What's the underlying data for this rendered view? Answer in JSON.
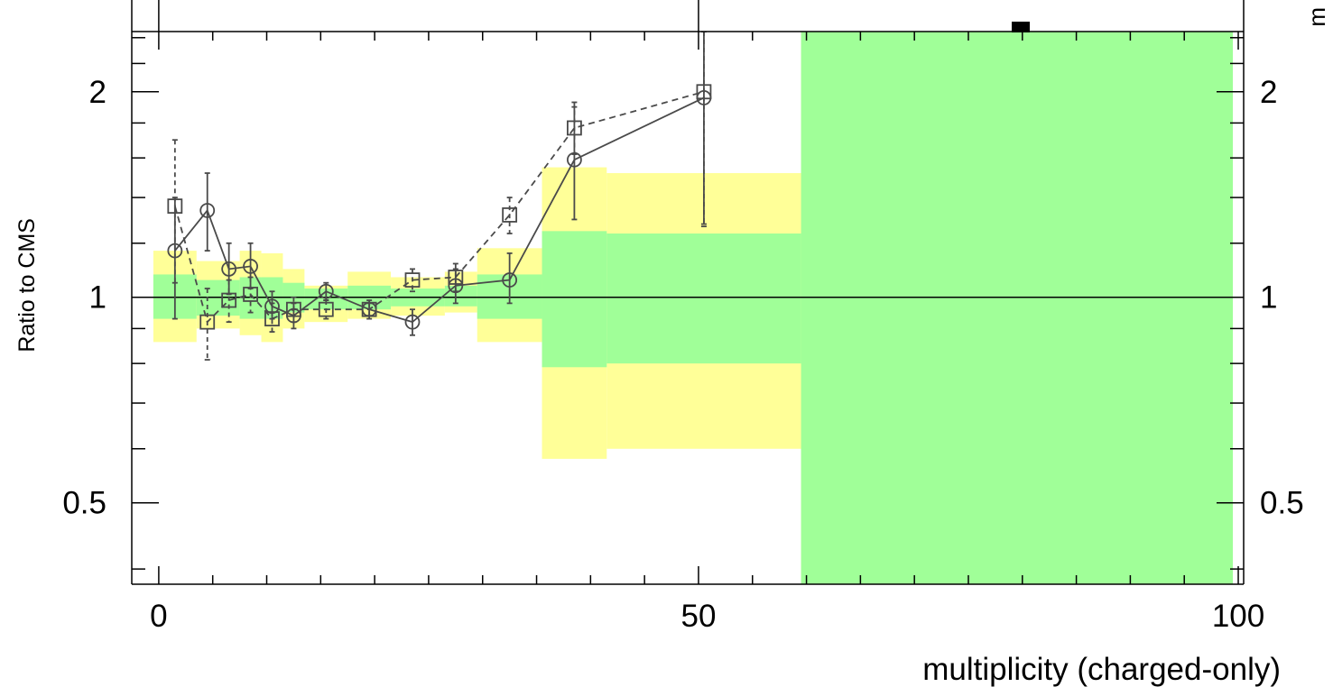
{
  "chart_data": {
    "type": "line",
    "xlabel": "multiplicity (charged-only)",
    "ylabel": "Ratio to CMS",
    "right_edge_label": "m",
    "xlim": [
      -2.5,
      100.5
    ],
    "ylim": [
      0.38,
      2.45
    ],
    "y_scale": "log",
    "x_ticks": [
      0,
      50,
      100
    ],
    "x_tick_labels": [
      "0",
      "50",
      "100"
    ],
    "y_ticks": [
      0.5,
      1,
      2
    ],
    "y_tick_labels": [
      "0.5",
      "1",
      "2"
    ],
    "reference_line": 1,
    "colors": {
      "stat_band": "#a0ff98",
      "syst_band": "#ffff98",
      "series": "#4a4a4a",
      "axis": "#000000"
    },
    "bands": {
      "outer": [
        {
          "x_lo": -0.5,
          "x_hi": 3.5,
          "lo": 0.86,
          "hi": 1.17
        },
        {
          "x_lo": 3.5,
          "x_hi": 7.5,
          "lo": 0.9,
          "hi": 1.13
        },
        {
          "x_lo": 7.5,
          "x_hi": 9.5,
          "lo": 0.88,
          "hi": 1.17
        },
        {
          "x_lo": 9.5,
          "x_hi": 11.5,
          "lo": 0.86,
          "hi": 1.16
        },
        {
          "x_lo": 11.5,
          "x_hi": 13.5,
          "lo": 0.9,
          "hi": 1.1
        },
        {
          "x_lo": 13.5,
          "x_hi": 17.5,
          "lo": 0.92,
          "hi": 1.04
        },
        {
          "x_lo": 17.5,
          "x_hi": 21.5,
          "lo": 0.93,
          "hi": 1.09
        },
        {
          "x_lo": 21.5,
          "x_hi": 26.5,
          "lo": 0.94,
          "hi": 1.07
        },
        {
          "x_lo": 26.5,
          "x_hi": 29.5,
          "lo": 0.95,
          "hi": 1.09
        },
        {
          "x_lo": 29.5,
          "x_hi": 35.5,
          "lo": 0.86,
          "hi": 1.18
        },
        {
          "x_lo": 35.5,
          "x_hi": 41.5,
          "lo": 0.58,
          "hi": 1.55
        },
        {
          "x_lo": 41.5,
          "x_hi": 59.5,
          "lo": 0.6,
          "hi": 1.52
        },
        {
          "x_lo": 59.5,
          "x_hi": 99.5,
          "lo": 0.38,
          "hi": 2.45
        }
      ],
      "inner": [
        {
          "x_lo": -0.5,
          "x_hi": 3.5,
          "lo": 0.93,
          "hi": 1.08
        },
        {
          "x_lo": 3.5,
          "x_hi": 7.5,
          "lo": 0.94,
          "hi": 1.06
        },
        {
          "x_lo": 7.5,
          "x_hi": 9.5,
          "lo": 0.93,
          "hi": 1.07
        },
        {
          "x_lo": 9.5,
          "x_hi": 11.5,
          "lo": 0.93,
          "hi": 1.07
        },
        {
          "x_lo": 11.5,
          "x_hi": 13.5,
          "lo": 0.95,
          "hi": 1.05
        },
        {
          "x_lo": 13.5,
          "x_hi": 17.5,
          "lo": 0.96,
          "hi": 1.03
        },
        {
          "x_lo": 17.5,
          "x_hi": 21.5,
          "lo": 0.96,
          "hi": 1.04
        },
        {
          "x_lo": 21.5,
          "x_hi": 26.5,
          "lo": 0.97,
          "hi": 1.03
        },
        {
          "x_lo": 26.5,
          "x_hi": 29.5,
          "lo": 0.97,
          "hi": 1.04
        },
        {
          "x_lo": 29.5,
          "x_hi": 35.5,
          "lo": 0.93,
          "hi": 1.08
        },
        {
          "x_lo": 35.5,
          "x_hi": 41.5,
          "lo": 0.79,
          "hi": 1.25
        },
        {
          "x_lo": 41.5,
          "x_hi": 59.5,
          "lo": 0.8,
          "hi": 1.24
        },
        {
          "x_lo": 59.5,
          "x_hi": 99.5,
          "lo": 0.38,
          "hi": 2.45
        }
      ]
    },
    "series": [
      {
        "marker": "circle",
        "linestyle": "solid",
        "points": [
          {
            "x": 1.5,
            "y": 1.17,
            "lo": 0.93,
            "hi": 1.4
          },
          {
            "x": 4.5,
            "y": 1.34,
            "lo": 1.17,
            "hi": 1.52
          },
          {
            "x": 6.5,
            "y": 1.1,
            "lo": 1.01,
            "hi": 1.2
          },
          {
            "x": 8.5,
            "y": 1.11,
            "lo": 1.03,
            "hi": 1.2
          },
          {
            "x": 10.5,
            "y": 0.97,
            "lo": 0.93,
            "hi": 1.02
          },
          {
            "x": 12.5,
            "y": 0.94,
            "lo": 0.9,
            "hi": 0.98
          },
          {
            "x": 15.5,
            "y": 1.02,
            "lo": 0.99,
            "hi": 1.05
          },
          {
            "x": 19.5,
            "y": 0.96,
            "lo": 0.93,
            "hi": 0.99
          },
          {
            "x": 23.5,
            "y": 0.92,
            "lo": 0.88,
            "hi": 0.96
          },
          {
            "x": 27.5,
            "y": 1.04,
            "lo": 0.98,
            "hi": 1.1
          },
          {
            "x": 32.5,
            "y": 1.06,
            "lo": 0.98,
            "hi": 1.16
          },
          {
            "x": 38.5,
            "y": 1.59,
            "lo": 1.3,
            "hi": 1.9
          },
          {
            "x": 50.5,
            "y": 1.96,
            "lo": 1.28,
            "hi": 2.45
          }
        ]
      },
      {
        "marker": "square",
        "linestyle": "dashed",
        "points": [
          {
            "x": 1.5,
            "y": 1.36,
            "lo": 1.05,
            "hi": 1.7
          },
          {
            "x": 4.5,
            "y": 0.92,
            "lo": 0.81,
            "hi": 1.03
          },
          {
            "x": 6.5,
            "y": 0.99,
            "lo": 0.92,
            "hi": 1.06
          },
          {
            "x": 8.5,
            "y": 1.01,
            "lo": 0.95,
            "hi": 1.07
          },
          {
            "x": 10.5,
            "y": 0.93,
            "lo": 0.89,
            "hi": 0.98
          },
          {
            "x": 12.5,
            "y": 0.96,
            "lo": 0.92,
            "hi": 1.0
          },
          {
            "x": 15.5,
            "y": 0.96,
            "lo": 0.93,
            "hi": 0.99
          },
          {
            "x": 19.5,
            "y": 0.96,
            "lo": 0.94,
            "hi": 0.98
          },
          {
            "x": 23.5,
            "y": 1.06,
            "lo": 1.02,
            "hi": 1.1
          },
          {
            "x": 27.5,
            "y": 1.07,
            "lo": 1.02,
            "hi": 1.12
          },
          {
            "x": 32.5,
            "y": 1.32,
            "lo": 1.24,
            "hi": 1.4
          },
          {
            "x": 38.5,
            "y": 1.77,
            "lo": 1.62,
            "hi": 1.93
          },
          {
            "x": 50.5,
            "y": 2.0,
            "lo": 1.27,
            "hi": 2.45
          }
        ]
      }
    ]
  }
}
